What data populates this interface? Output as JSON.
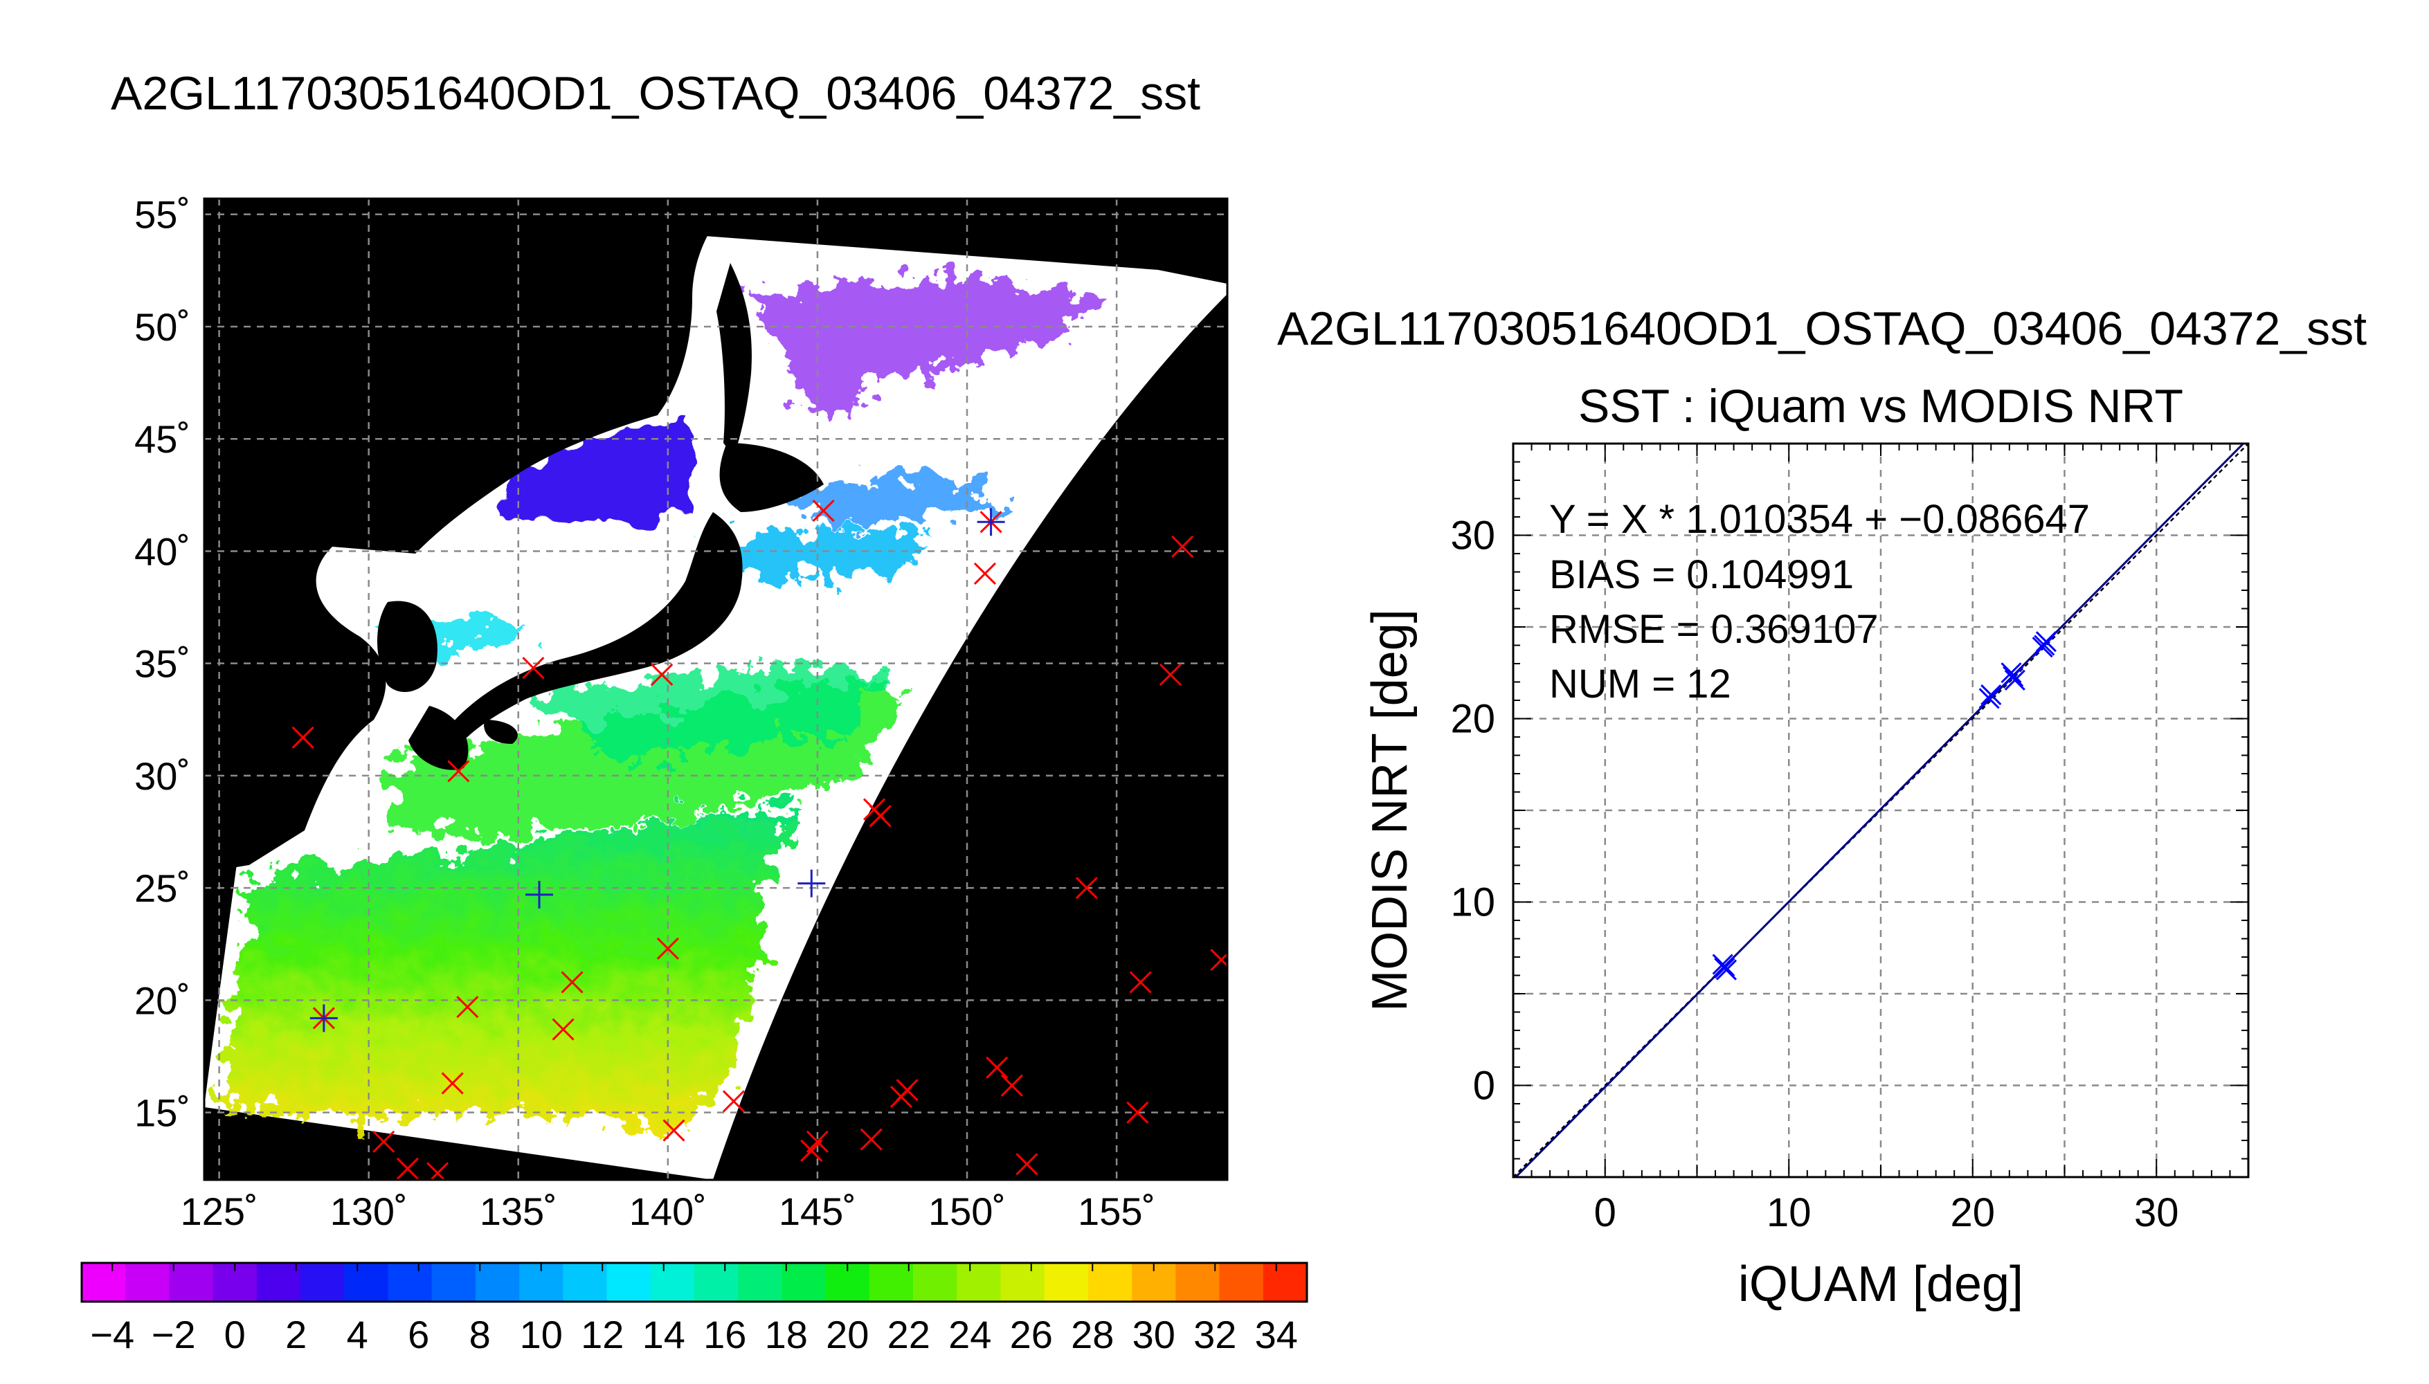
{
  "map_title": "A2GL11703051640OD1_OSTAQ_03406_04372_sst",
  "scatter_title_line1": "A2GL11703051640OD1_OSTAQ_03406_04372_sst",
  "scatter_title_line2": "SST : iQuam vs MODIS NRT",
  "colors": {
    "colorbar": [
      "#ee00ff",
      "#c800f8",
      "#a000f0",
      "#7800ec",
      "#4c00ee",
      "#2810f4",
      "#0028f8",
      "#0040ff",
      "#0060ff",
      "#0088ff",
      "#00a8ff",
      "#00c8ff",
      "#00e8ff",
      "#00f0d8",
      "#00f0a8",
      "#00ee78",
      "#00ec48",
      "#10ee10",
      "#40f000",
      "#70f000",
      "#a0f000",
      "#c8f000",
      "#f0f000",
      "#ffd800",
      "#ffb000",
      "#ff8800",
      "#ff5800",
      "#ff2800"
    ],
    "iquam_marker": "#ff0000",
    "scatter_marker": "#0000ff",
    "fit_line": "#000080"
  },
  "chart_data": [
    {
      "type": "map",
      "title": "A2GL11703051640OD1_OSTAQ_03406_04372_sst",
      "lon_ticks": [
        "125˚",
        "130˚",
        "135˚",
        "140˚",
        "145˚",
        "150˚",
        "155˚"
      ],
      "lat_ticks": [
        "55˚",
        "50˚",
        "45˚",
        "40˚",
        "35˚",
        "30˚",
        "25˚",
        "20˚",
        "15˚"
      ],
      "lon_range": [
        124.5,
        158.7
      ],
      "lat_range": [
        12.0,
        55.7
      ],
      "grid": true,
      "colorbar": {
        "range": [
          -5,
          35
        ],
        "tick_labels": [
          "−4",
          "−2",
          "0",
          "2",
          "4",
          "6",
          "8",
          "10",
          "12",
          "14",
          "16",
          "18",
          "20",
          "22",
          "24",
          "26",
          "28",
          "30",
          "32",
          "34"
        ]
      },
      "iquam_points": [
        [
          127.8,
          31.7
        ],
        [
          133.0,
          30.2
        ],
        [
          135.5,
          34.8
        ],
        [
          139.8,
          34.5
        ],
        [
          145.2,
          41.8
        ],
        [
          150.8,
          41.3
        ],
        [
          150.6,
          39.0
        ],
        [
          157.2,
          40.2
        ],
        [
          156.8,
          34.5
        ],
        [
          146.9,
          28.5
        ],
        [
          147.1,
          28.2
        ],
        [
          154.0,
          25.0
        ],
        [
          158.5,
          21.8
        ],
        [
          155.8,
          20.8
        ],
        [
          140.0,
          22.3
        ],
        [
          136.8,
          20.8
        ],
        [
          133.3,
          19.7
        ],
        [
          136.5,
          18.7
        ],
        [
          128.5,
          19.2
        ],
        [
          132.8,
          16.3
        ],
        [
          151.0,
          17.0
        ],
        [
          151.5,
          16.2
        ],
        [
          147.8,
          15.7
        ],
        [
          148.0,
          16.0
        ],
        [
          155.7,
          15.0
        ],
        [
          142.2,
          15.5
        ],
        [
          140.2,
          14.2
        ],
        [
          130.5,
          13.7
        ],
        [
          131.3,
          12.5
        ],
        [
          132.3,
          12.3
        ],
        [
          144.8,
          13.3
        ],
        [
          145.0,
          13.7
        ],
        [
          146.8,
          13.8
        ],
        [
          152.0,
          12.7
        ]
      ],
      "matched_points": [
        [
          128.5,
          19.2
        ],
        [
          135.7,
          24.7
        ],
        [
          144.8,
          25.2
        ],
        [
          150.8,
          41.3
        ]
      ]
    },
    {
      "type": "scatter",
      "title": "SST : iQuam vs MODIS NRT",
      "xlabel": "iQUAM [deg]",
      "ylabel": "MODIS NRT [deg]",
      "xlim": [
        -5,
        35
      ],
      "ylim": [
        -5,
        35
      ],
      "x_ticks": [
        "0",
        "10",
        "20",
        "30"
      ],
      "y_ticks": [
        "0",
        "10",
        "20",
        "30"
      ],
      "grid": true,
      "points": [
        {
          "x": 6.5,
          "y": 6.5
        },
        {
          "x": 6.6,
          "y": 6.3
        },
        {
          "x": 6.4,
          "y": 6.6
        },
        {
          "x": 20.9,
          "y": 21.1
        },
        {
          "x": 21.0,
          "y": 21.3
        },
        {
          "x": 22.2,
          "y": 22.3
        },
        {
          "x": 22.3,
          "y": 22.1
        },
        {
          "x": 22.1,
          "y": 22.5
        },
        {
          "x": 23.9,
          "y": 24.0
        },
        {
          "x": 24.0,
          "y": 24.2
        },
        {
          "x": 23.8,
          "y": 23.9
        },
        {
          "x": 6.5,
          "y": 6.4
        }
      ],
      "fit": {
        "slope": 1.010354,
        "intercept": -0.086647
      },
      "stats": {
        "equation": "Y = X * 1.010354 + −0.086647",
        "bias": "BIAS = 0.104991",
        "rmse": "RMSE = 0.369107",
        "num": "NUM = 12"
      }
    }
  ]
}
